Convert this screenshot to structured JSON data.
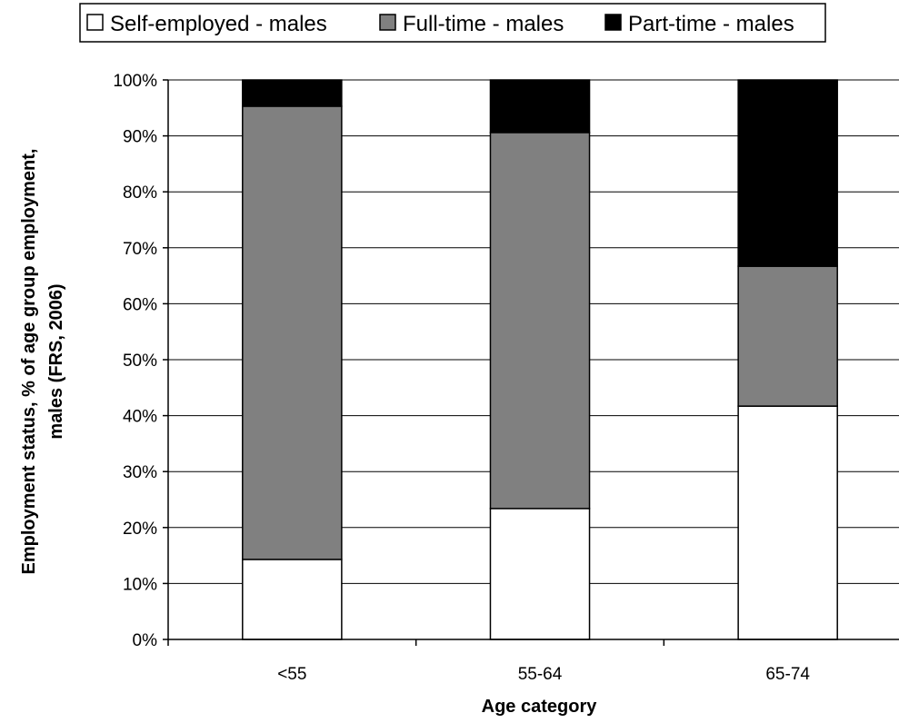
{
  "chart_data": {
    "type": "bar",
    "stacked": true,
    "percent_stacked": true,
    "categories": [
      "<55",
      "55-64",
      "65-74"
    ],
    "series": [
      {
        "name": "Self-employed - males",
        "values": [
          14.3,
          23.4,
          41.7
        ],
        "color": "#ffffff"
      },
      {
        "name": "Full-time - males",
        "values": [
          81.0,
          67.2,
          25.0
        ],
        "color": "#808080"
      },
      {
        "name": "Part-time - males",
        "values": [
          4.7,
          9.4,
          33.3
        ],
        "color": "#000000"
      }
    ],
    "title": "",
    "xlabel": "Age category",
    "ylabel_lines": [
      "Employment status, % of age group employment,",
      "males (FRS, 2006)"
    ],
    "ylim": [
      0,
      100
    ],
    "yticks": [
      "0%",
      "10%",
      "20%",
      "30%",
      "40%",
      "50%",
      "60%",
      "70%",
      "80%",
      "90%",
      "100%"
    ],
    "grid": true,
    "legend_position": "top"
  }
}
